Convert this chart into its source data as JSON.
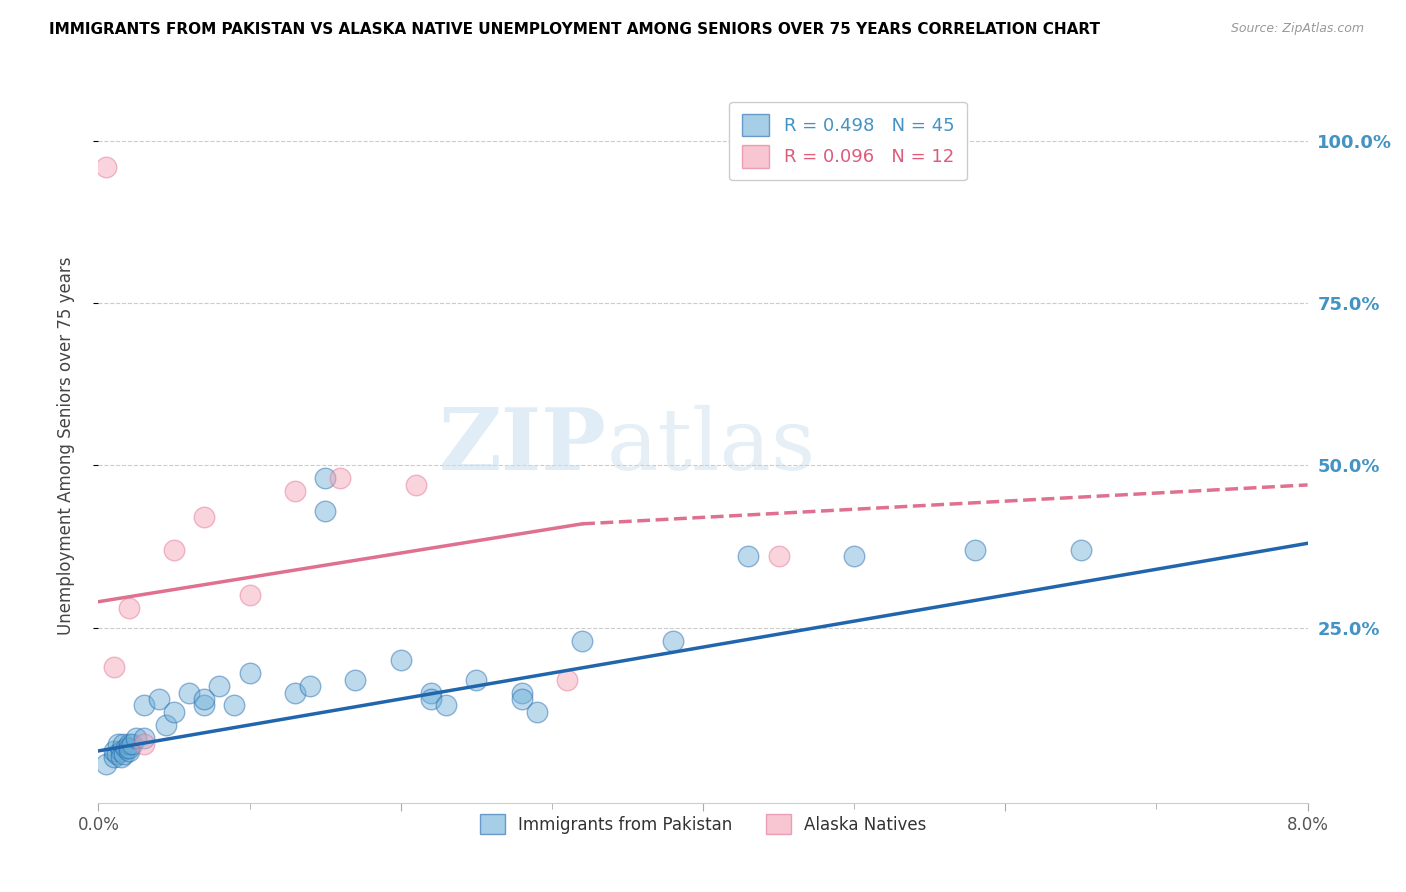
{
  "title": "IMMIGRANTS FROM PAKISTAN VS ALASKA NATIVE UNEMPLOYMENT AMONG SENIORS OVER 75 YEARS CORRELATION CHART",
  "source": "Source: ZipAtlas.com",
  "ylabel": "Unemployment Among Seniors over 75 years",
  "ytick_labels": [
    "25.0%",
    "50.0%",
    "75.0%",
    "100.0%"
  ],
  "ytick_values": [
    0.25,
    0.5,
    0.75,
    1.0
  ],
  "xlim": [
    0.0,
    0.08
  ],
  "ylim": [
    -0.02,
    1.08
  ],
  "legend_r1": "R = 0.498",
  "legend_n1": "N = 45",
  "legend_r2": "R = 0.096",
  "legend_n2": "N = 12",
  "color_blue": "#6baed6",
  "color_pink": "#f4a0b5",
  "color_line_blue": "#2166ac",
  "color_line_pink": "#e07090",
  "color_right_axis": "#4393c3",
  "watermark_zip": "ZIP",
  "watermark_atlas": "atlas",
  "pakistan_x": [
    0.0005,
    0.001,
    0.001,
    0.0012,
    0.0013,
    0.0015,
    0.0015,
    0.0016,
    0.0017,
    0.0018,
    0.002,
    0.002,
    0.002,
    0.0022,
    0.0025,
    0.003,
    0.003,
    0.004,
    0.0045,
    0.005,
    0.006,
    0.007,
    0.007,
    0.008,
    0.009,
    0.01,
    0.013,
    0.014,
    0.015,
    0.015,
    0.017,
    0.02,
    0.022,
    0.022,
    0.023,
    0.025,
    0.028,
    0.028,
    0.029,
    0.032,
    0.038,
    0.043,
    0.05,
    0.058,
    0.065
  ],
  "pakistan_y": [
    0.04,
    0.05,
    0.06,
    0.055,
    0.07,
    0.06,
    0.05,
    0.07,
    0.055,
    0.065,
    0.06,
    0.07,
    0.065,
    0.07,
    0.08,
    0.08,
    0.13,
    0.14,
    0.1,
    0.12,
    0.15,
    0.13,
    0.14,
    0.16,
    0.13,
    0.18,
    0.15,
    0.16,
    0.48,
    0.43,
    0.17,
    0.2,
    0.15,
    0.14,
    0.13,
    0.17,
    0.15,
    0.14,
    0.12,
    0.23,
    0.23,
    0.36,
    0.36,
    0.37,
    0.37
  ],
  "alaska_x": [
    0.0005,
    0.001,
    0.002,
    0.003,
    0.005,
    0.007,
    0.01,
    0.013,
    0.016,
    0.021,
    0.031,
    0.045
  ],
  "alaska_y": [
    0.96,
    0.19,
    0.28,
    0.07,
    0.37,
    0.42,
    0.3,
    0.46,
    0.48,
    0.47,
    0.17,
    0.36
  ],
  "trendline_blue_x0": 0.0,
  "trendline_blue_x1": 0.08,
  "trendline_blue_y0": 0.06,
  "trendline_blue_y1": 0.38,
  "trendline_pink_solid_x0": 0.0,
  "trendline_pink_solid_x1": 0.032,
  "trendline_pink_y0": 0.29,
  "trendline_pink_y1": 0.41,
  "trendline_pink_dashed_x0": 0.032,
  "trendline_pink_dashed_x1": 0.08,
  "trendline_pink_dashed_y0": 0.41,
  "trendline_pink_dashed_y1": 0.47,
  "xtick_show_positions": [
    0.0,
    0.02,
    0.04,
    0.06,
    0.08
  ],
  "xtick_show_labels": [
    "0.0%",
    "",
    "",
    "",
    "8.0%"
  ],
  "xtick_minor_positions": [
    0.01,
    0.03,
    0.05,
    0.07
  ]
}
